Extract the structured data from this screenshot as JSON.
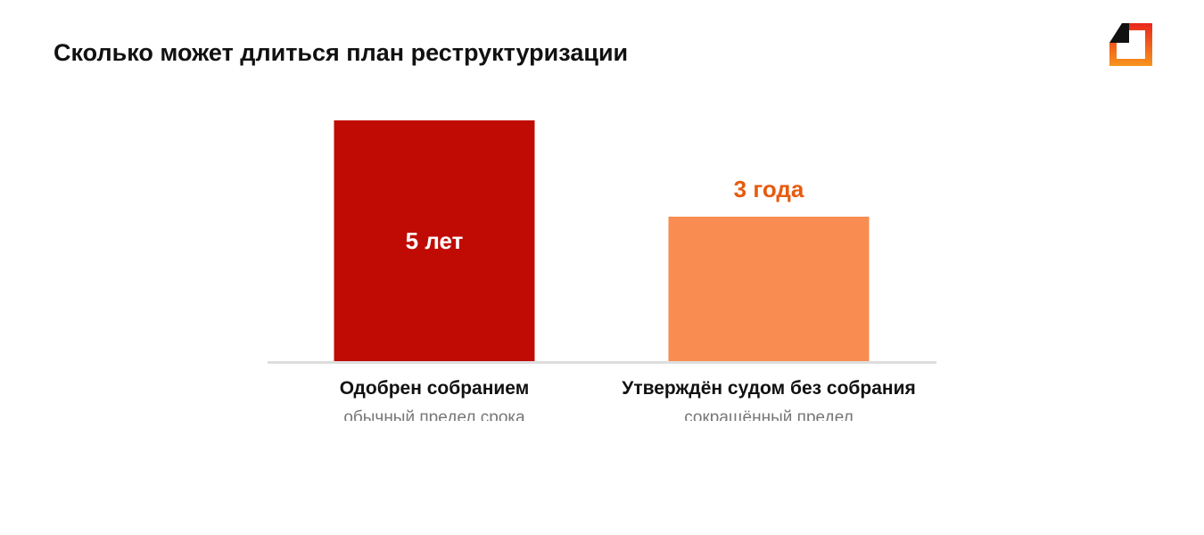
{
  "page": {
    "title": "Сколько может длиться план реструктуризации"
  },
  "logo": {
    "icon": "brand-logo-icon",
    "colors": [
      "#111111",
      "#e8271c",
      "#f7941d"
    ]
  },
  "chart_data": {
    "type": "bar",
    "title": "",
    "categories": [
      "Одобрен собранием",
      "Утверждён судом без собрания"
    ],
    "subtitles": [
      "обычный предел срока",
      "сокращённый предел"
    ],
    "values": [
      5,
      3
    ],
    "value_labels": [
      "5 лет",
      "3 года"
    ],
    "value_label_positions": [
      "inside",
      "above"
    ],
    "colors": [
      "#c00b05",
      "#f98c51"
    ],
    "value_label_colors": [
      "#ffffff",
      "#e65b0f"
    ],
    "ylim": [
      0,
      5
    ],
    "grid": false,
    "legend": "none"
  }
}
